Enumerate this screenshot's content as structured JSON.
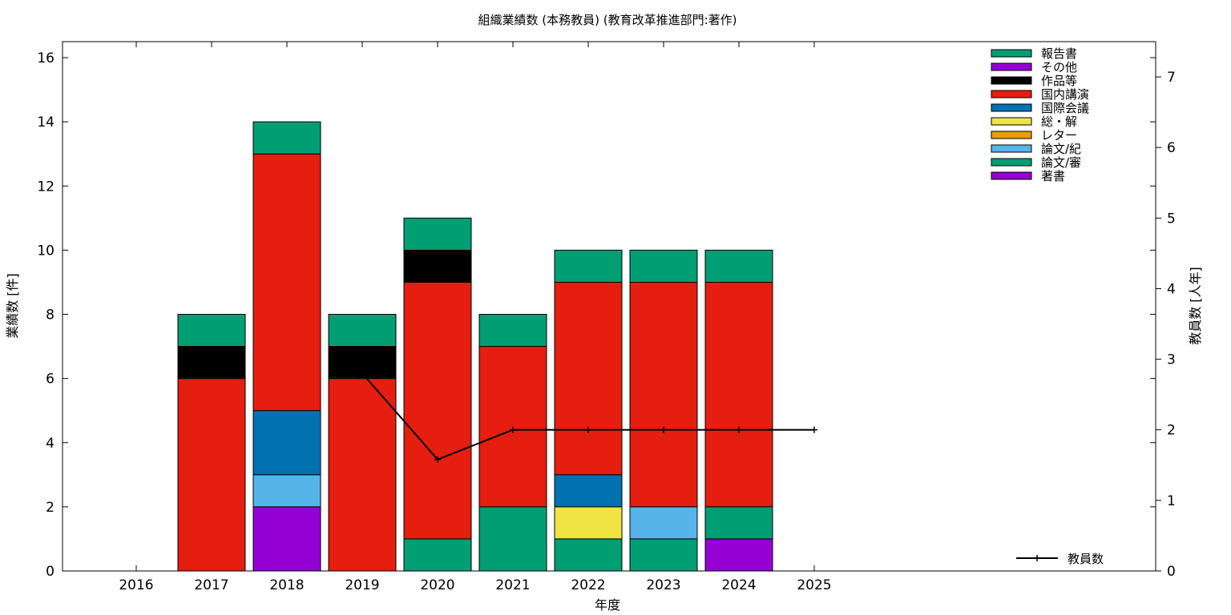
{
  "chart_data": {
    "type": "bar",
    "title": "組織業績数 (本務教員) (教育改革推進部門:著作)",
    "xlabel": "年度",
    "ylabel": "業績数 [件]",
    "y2label": "教員数 [人年]",
    "ylim": [
      0,
      16.5
    ],
    "y2lim": [
      0,
      7.5
    ],
    "yticks": [
      "0",
      "2",
      "4",
      "6",
      "8",
      "10",
      "12",
      "14",
      "16"
    ],
    "y2ticks": [
      "0",
      "1",
      "2",
      "3",
      "4",
      "5",
      "6",
      "7"
    ],
    "categories": [
      "2016",
      "2017",
      "2018",
      "2019",
      "2020",
      "2021",
      "2022",
      "2023",
      "2024",
      "2025"
    ],
    "stacked": true,
    "legend_position": "top-right",
    "series": [
      {
        "name": "著書",
        "color": "#9400d3",
        "values": [
          0,
          0,
          2,
          0,
          0,
          0,
          0,
          0,
          1,
          0
        ]
      },
      {
        "name": "論文/審",
        "color": "#009e73",
        "values": [
          0,
          0,
          0,
          0,
          1,
          2,
          1,
          1,
          1,
          0
        ]
      },
      {
        "name": "論文/紀",
        "color": "#56b4e9",
        "values": [
          0,
          0,
          1,
          0,
          0,
          0,
          0,
          1,
          0,
          0
        ]
      },
      {
        "name": "レター",
        "color": "#e69f00",
        "values": [
          0,
          0,
          0,
          0,
          0,
          0,
          0,
          0,
          0,
          0
        ]
      },
      {
        "name": "総・解",
        "color": "#f0e442",
        "values": [
          0,
          0,
          0,
          0,
          0,
          0,
          1,
          0,
          0,
          0
        ]
      },
      {
        "name": "国際会議",
        "color": "#0072b2",
        "values": [
          0,
          0,
          2,
          0,
          0,
          0,
          1,
          0,
          0,
          0
        ]
      },
      {
        "name": "国内講演",
        "color": "#e51e10",
        "values": [
          0,
          6,
          8,
          6,
          8,
          5,
          6,
          7,
          7,
          0
        ]
      },
      {
        "name": "作品等",
        "color": "#000000",
        "values": [
          0,
          1,
          0,
          1,
          1,
          0,
          0,
          0,
          0,
          0
        ]
      },
      {
        "name": "その他",
        "color": "#9400d3",
        "values": [
          0,
          0,
          0,
          0,
          0,
          0,
          0,
          0,
          0,
          0
        ]
      },
      {
        "name": "報告書",
        "color": "#009e73",
        "values": [
          0,
          1,
          1,
          1,
          1,
          1,
          1,
          1,
          1,
          0
        ]
      }
    ],
    "line_series": {
      "name": "教員数",
      "axis": "right",
      "color": "#000000",
      "points": [
        {
          "x": "2019",
          "y": 2.8
        },
        {
          "x": "2020",
          "y": 1.58
        },
        {
          "x": "2021",
          "y": 2
        },
        {
          "x": "2022",
          "y": 2
        },
        {
          "x": "2023",
          "y": 2
        },
        {
          "x": "2024",
          "y": 2
        },
        {
          "x": "2025",
          "y": 2
        }
      ]
    }
  }
}
